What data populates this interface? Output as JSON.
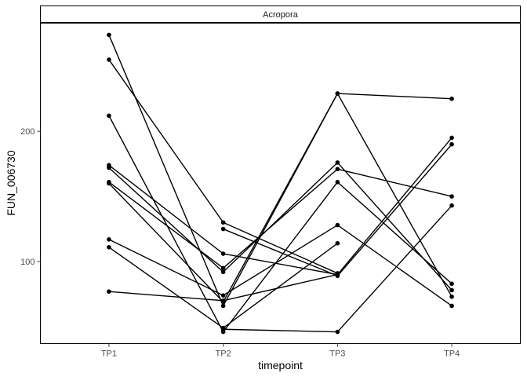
{
  "chart_data": {
    "type": "line",
    "facet_label": "Acropora",
    "xlabel": "timepoint",
    "ylabel": "FUN_006730",
    "categories": [
      "TP1",
      "TP2",
      "TP3",
      "TP4"
    ],
    "y_ticks": [
      100,
      200
    ],
    "ylim": [
      37,
      283
    ],
    "grid": false,
    "colors": {
      "line": "#000000",
      "point": "#000000",
      "panel_border": "#000000",
      "strip_fill": "#ffffff"
    },
    "series": [
      {
        "values": [
          274,
          66,
          229,
          225
        ]
      },
      {
        "values": [
          255,
          130,
          91,
          null
        ]
      },
      {
        "values": [
          212,
          46,
          161,
          83
        ]
      },
      {
        "values": [
          174,
          106,
          90,
          null
        ]
      },
      {
        "values": [
          172,
          92,
          176,
          78
        ]
      },
      {
        "values": [
          161,
          95,
          171,
          150
        ]
      },
      {
        "values": [
          160,
          69,
          229,
          73
        ]
      },
      {
        "values": [
          117,
          74,
          128,
          66
        ]
      },
      {
        "values": [
          111,
          49,
          114,
          null
        ]
      },
      {
        "values": [
          77,
          70,
          90,
          195
        ]
      },
      {
        "values": [
          null,
          125,
          89,
          190
        ]
      },
      {
        "values": [
          null,
          48,
          46,
          143
        ]
      }
    ]
  }
}
